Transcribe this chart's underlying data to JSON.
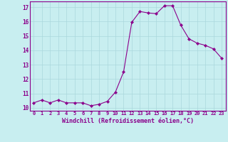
{
  "x": [
    0,
    1,
    2,
    3,
    4,
    5,
    6,
    7,
    8,
    9,
    10,
    11,
    12,
    13,
    14,
    15,
    16,
    17,
    18,
    19,
    20,
    21,
    22,
    23
  ],
  "y": [
    10.35,
    10.55,
    10.35,
    10.55,
    10.35,
    10.35,
    10.35,
    10.15,
    10.25,
    10.45,
    11.1,
    12.5,
    15.95,
    16.7,
    16.6,
    16.55,
    17.1,
    17.1,
    15.75,
    14.8,
    14.5,
    14.35,
    14.1,
    13.45
  ],
  "line_color": "#8B008B",
  "marker": "D",
  "marker_size": 2.2,
  "bg_color": "#c8eef0",
  "grid_color": "#aad8dc",
  "xlabel": "Windchill (Refroidissement éolien,°C)",
  "xlabel_color": "#8B008B",
  "tick_color": "#8B008B",
  "ylim": [
    9.8,
    17.4
  ],
  "xlim": [
    -0.5,
    23.5
  ],
  "xticks": [
    0,
    1,
    2,
    3,
    4,
    5,
    6,
    7,
    8,
    9,
    10,
    11,
    12,
    13,
    14,
    15,
    16,
    17,
    18,
    19,
    20,
    21,
    22,
    23
  ],
  "yticks": [
    10,
    11,
    12,
    13,
    14,
    15,
    16,
    17
  ],
  "xtick_fontsize": 5.0,
  "ytick_fontsize": 5.5,
  "xlabel_fontsize": 6.0
}
